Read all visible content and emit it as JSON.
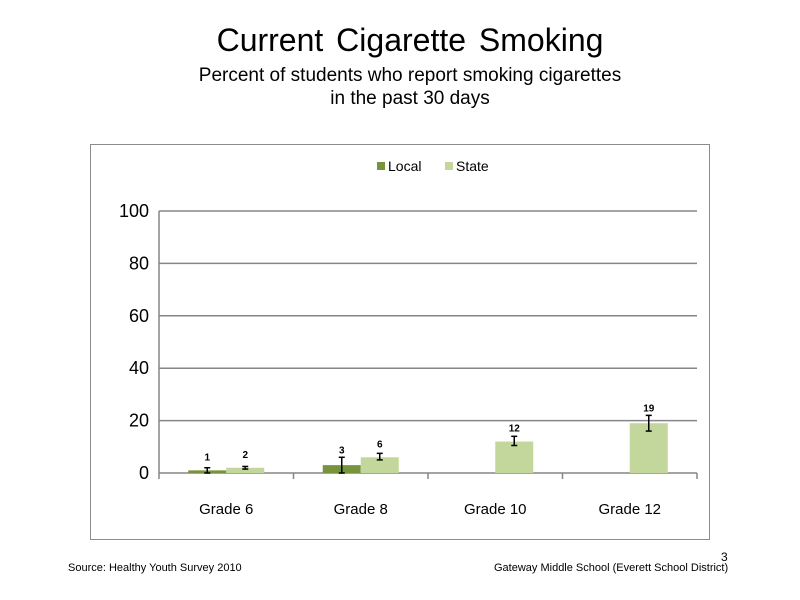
{
  "slide": {
    "title": "Current Cigarette Smoking",
    "subtitle_line1": "Percent of students who report smoking cigarettes",
    "subtitle_line2": "in the past 30 days",
    "source": "Source: Healthy Youth Survey 2010",
    "school": "Gateway Middle School (Everett School District)",
    "page_number": "3"
  },
  "chart_data": {
    "type": "bar",
    "categories": [
      "Grade 6",
      "Grade 8",
      "Grade 10",
      "Grade 12"
    ],
    "series": [
      {
        "name": "Local",
        "color": "#77933c",
        "values": [
          1,
          3,
          null,
          null
        ],
        "labels": [
          "1",
          "3",
          "",
          ""
        ],
        "error": [
          [
            0,
            2
          ],
          [
            0,
            6
          ],
          null,
          null
        ]
      },
      {
        "name": "State",
        "color": "#c3d69b",
        "values": [
          2,
          6,
          12,
          19
        ],
        "labels": [
          "2",
          "6",
          "12",
          "19"
        ],
        "error": [
          [
            1.5,
            2.5
          ],
          [
            5,
            7.5
          ],
          [
            10.5,
            14
          ],
          [
            16,
            22
          ]
        ]
      }
    ],
    "ylim": [
      0,
      100
    ],
    "yticks": [
      "0",
      "20",
      "40",
      "60",
      "80",
      "100"
    ],
    "ytick_values": [
      0,
      20,
      40,
      60,
      80,
      100
    ],
    "grid": true,
    "legend": "top-center"
  }
}
